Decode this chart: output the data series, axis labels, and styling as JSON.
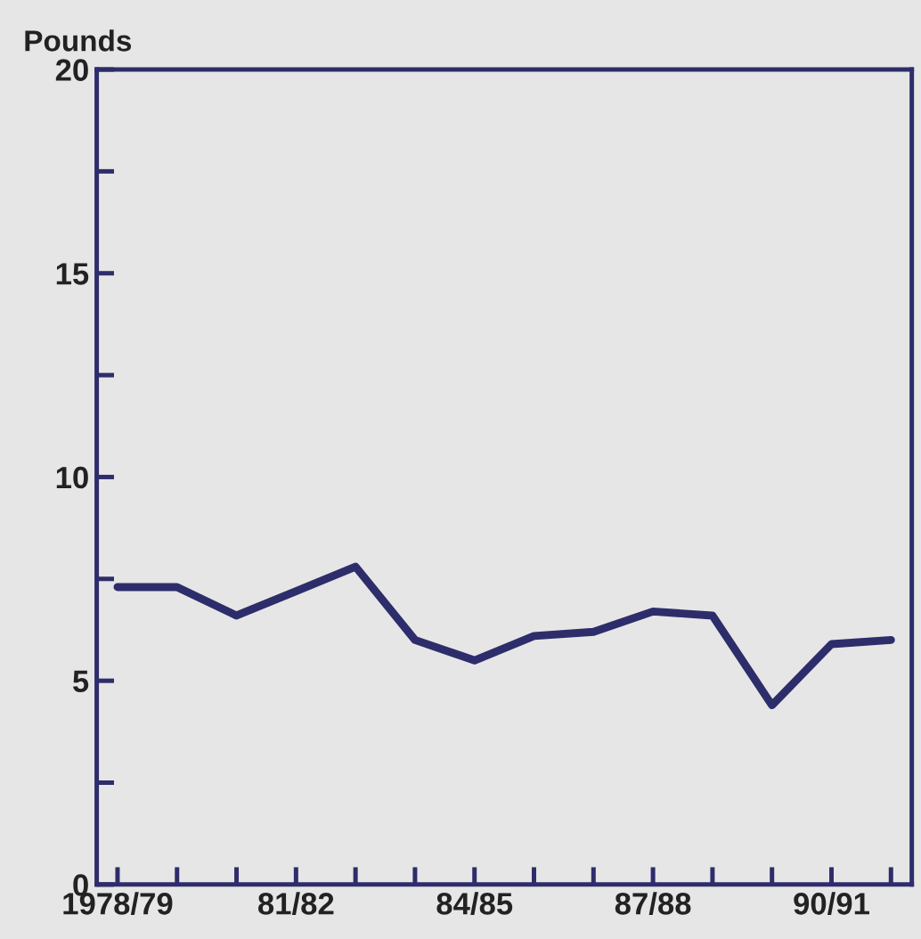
{
  "chart_data": {
    "type": "line",
    "ylabel": "Pounds",
    "categories": [
      "1978/79",
      null,
      null,
      "81/82",
      null,
      null,
      "84/85",
      null,
      null,
      "87/88",
      null,
      null,
      "90/91",
      null
    ],
    "series": [
      {
        "color": "#2e2d6b",
        "values": [
          7.3,
          7.3,
          6.6,
          7.2,
          7.8,
          6.0,
          5.5,
          6.1,
          6.2,
          6.7,
          6.6,
          4.4,
          5.9,
          6.0
        ]
      }
    ],
    "ylim": [
      0,
      20
    ],
    "yticks": [
      0,
      {
        "value": 2.5,
        "label": null
      },
      5,
      {
        "value": 7.5,
        "label": null
      },
      10,
      {
        "value": 12.5,
        "label": null
      },
      15,
      {
        "value": 17.5,
        "label": null
      },
      20
    ],
    "grid": false,
    "legend": false,
    "marker": "none",
    "line_style": "solid"
  }
}
